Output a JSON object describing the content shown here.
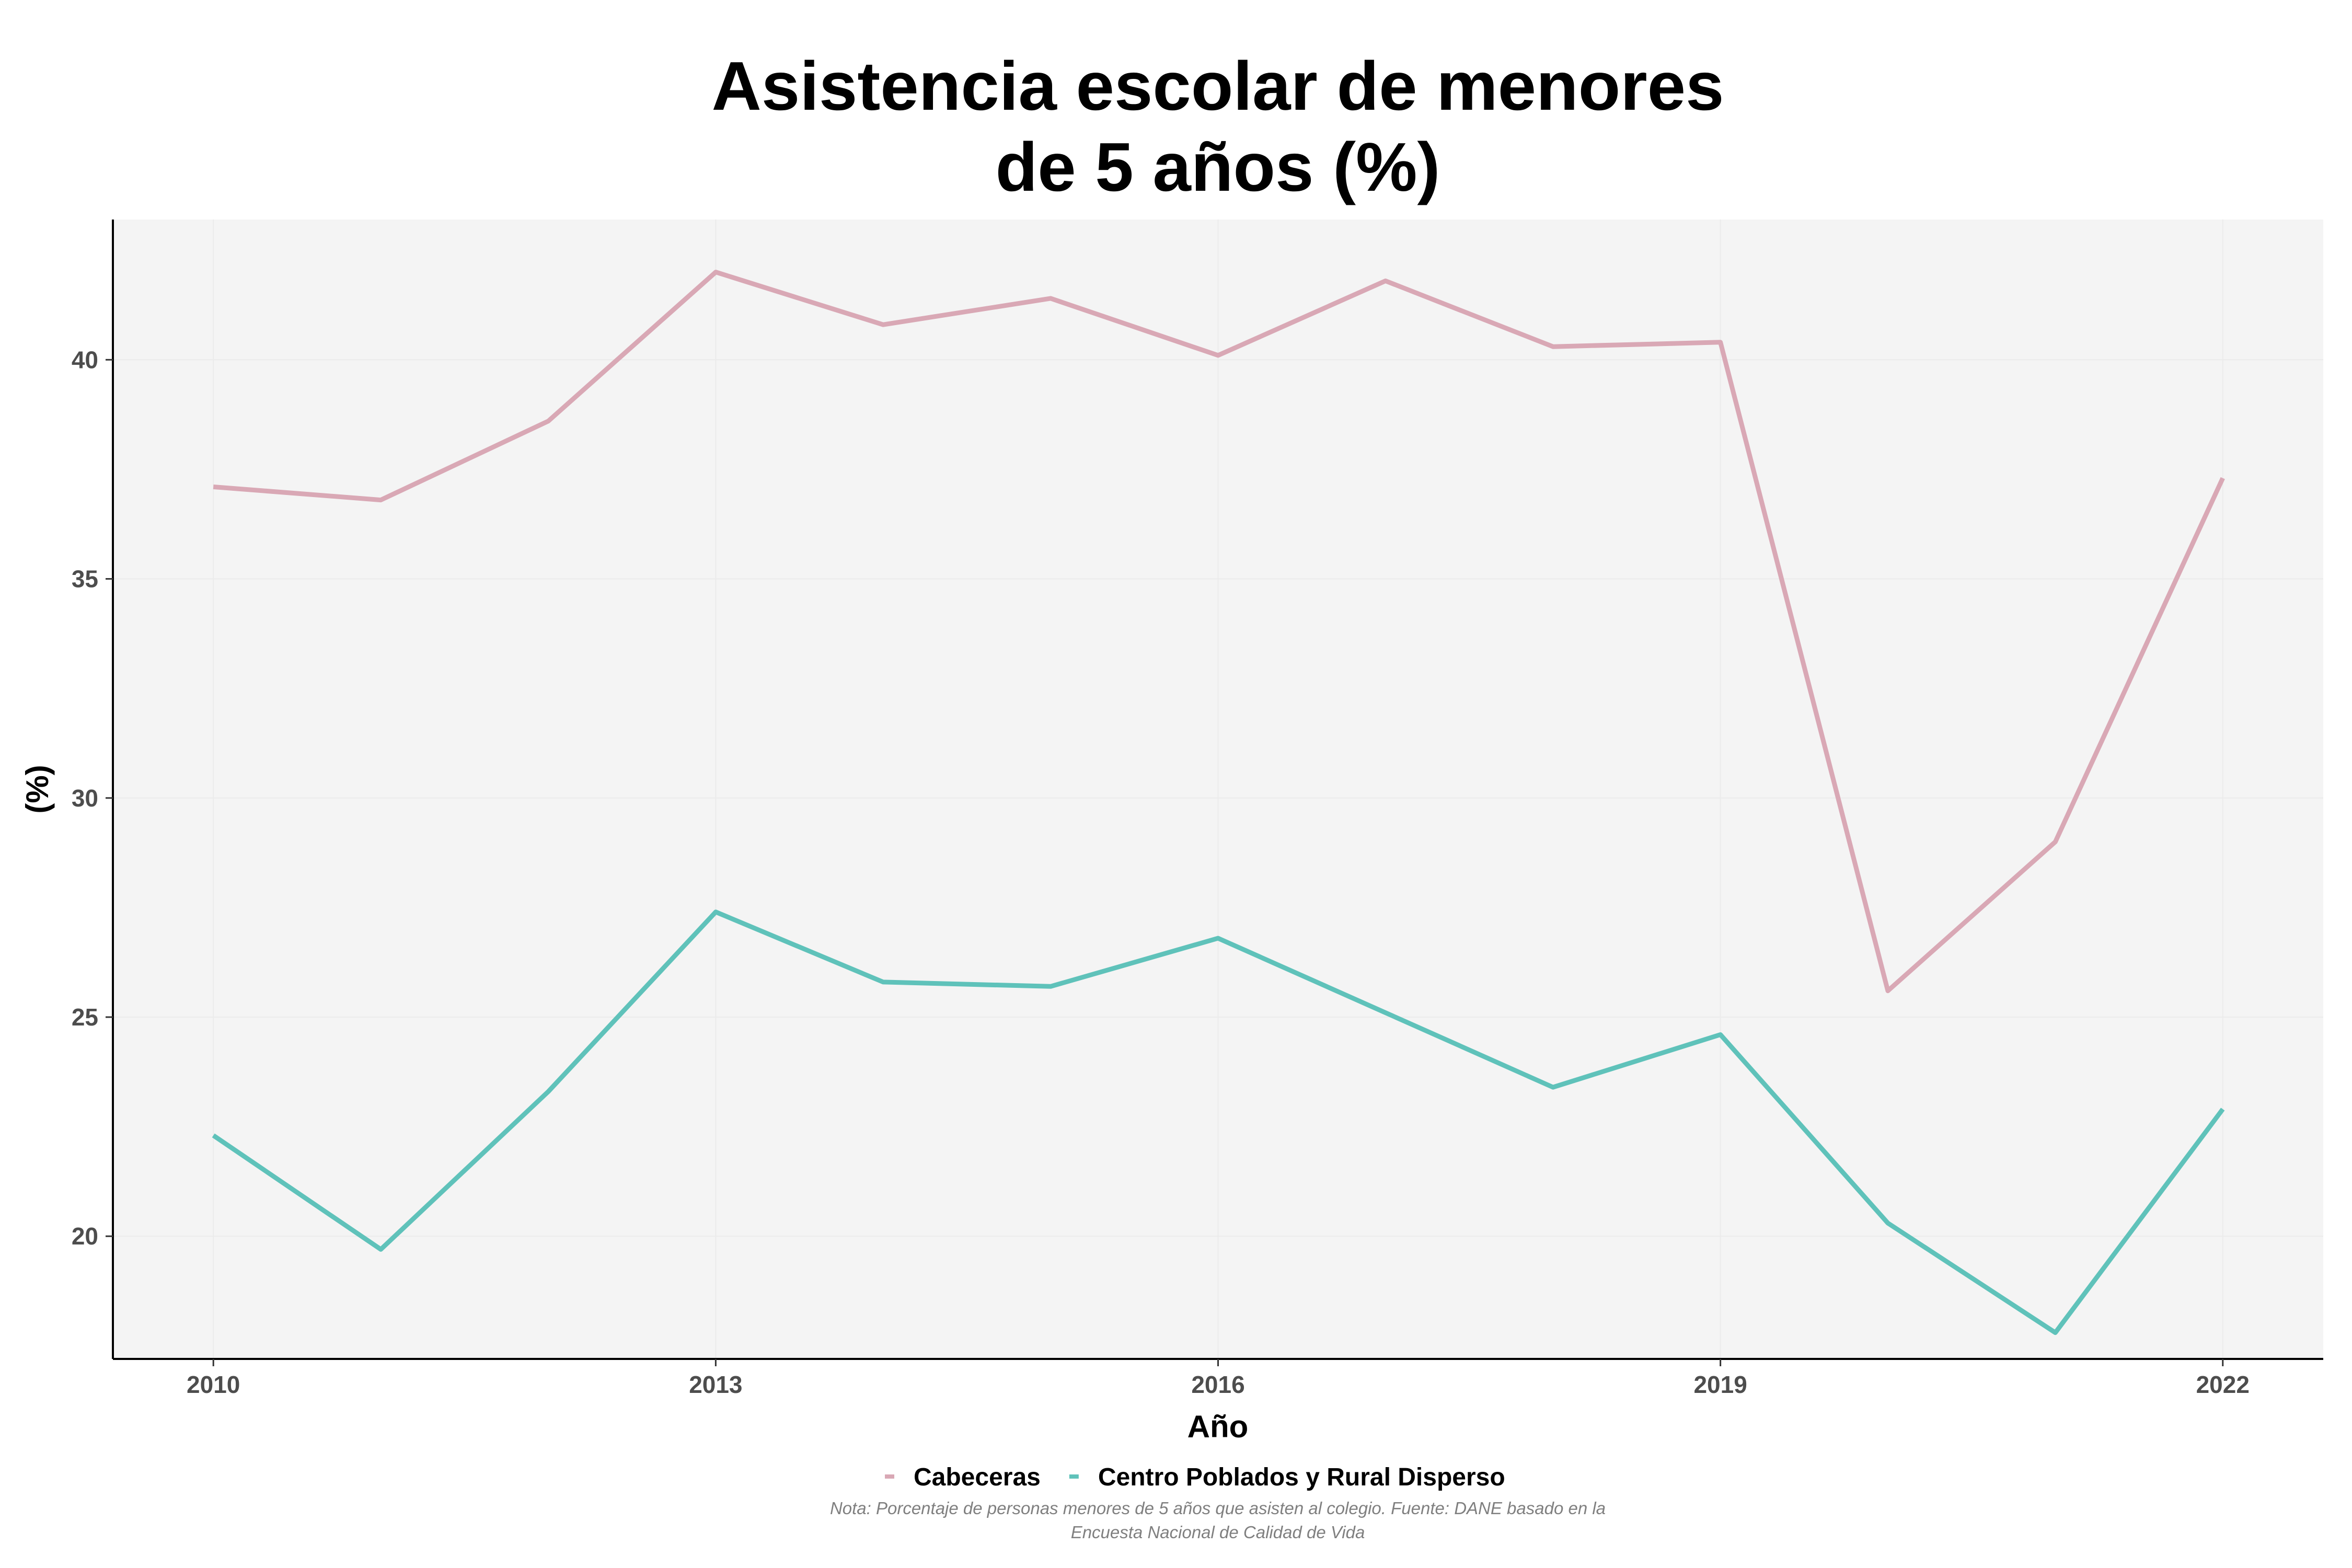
{
  "chart_data": {
    "type": "line",
    "title_lines": [
      "Asistencia escolar de menores",
      "de 5 años (%)"
    ],
    "xlabel": "Año",
    "ylabel": "(%)",
    "x": [
      2010,
      2011,
      2012,
      2013,
      2014,
      2015,
      2016,
      2017,
      2018,
      2019,
      2020,
      2021,
      2022
    ],
    "x_ticks": [
      2010,
      2013,
      2016,
      2019,
      2022
    ],
    "y_ticks": [
      20,
      25,
      30,
      35,
      40
    ],
    "xlim": [
      2009.4,
      2022.6
    ],
    "ylim": [
      17.2,
      43.2
    ],
    "series": [
      {
        "name": "Cabeceras",
        "color": "#d9a8b5",
        "values": [
          37.1,
          36.8,
          38.6,
          42.0,
          40.8,
          41.4,
          40.1,
          41.8,
          40.3,
          40.4,
          25.6,
          29.0,
          37.3
        ]
      },
      {
        "name": "Centro Poblados y Rural Disperso",
        "color": "#5fc2ba",
        "values": [
          22.3,
          19.7,
          23.3,
          27.4,
          25.8,
          25.7,
          26.8,
          25.1,
          23.4,
          24.6,
          20.3,
          17.8,
          22.9
        ]
      }
    ],
    "grid": true,
    "legend_position": "bottom",
    "note_lines": [
      "Nota: Porcentaje de personas menores de 5 años que asisten al colegio. Fuente: DANE basado en la",
      "Encuesta Nacional de Calidad de Vida"
    ],
    "panel_color": "#f4f4f4",
    "grid_color": "#ebebeb"
  }
}
